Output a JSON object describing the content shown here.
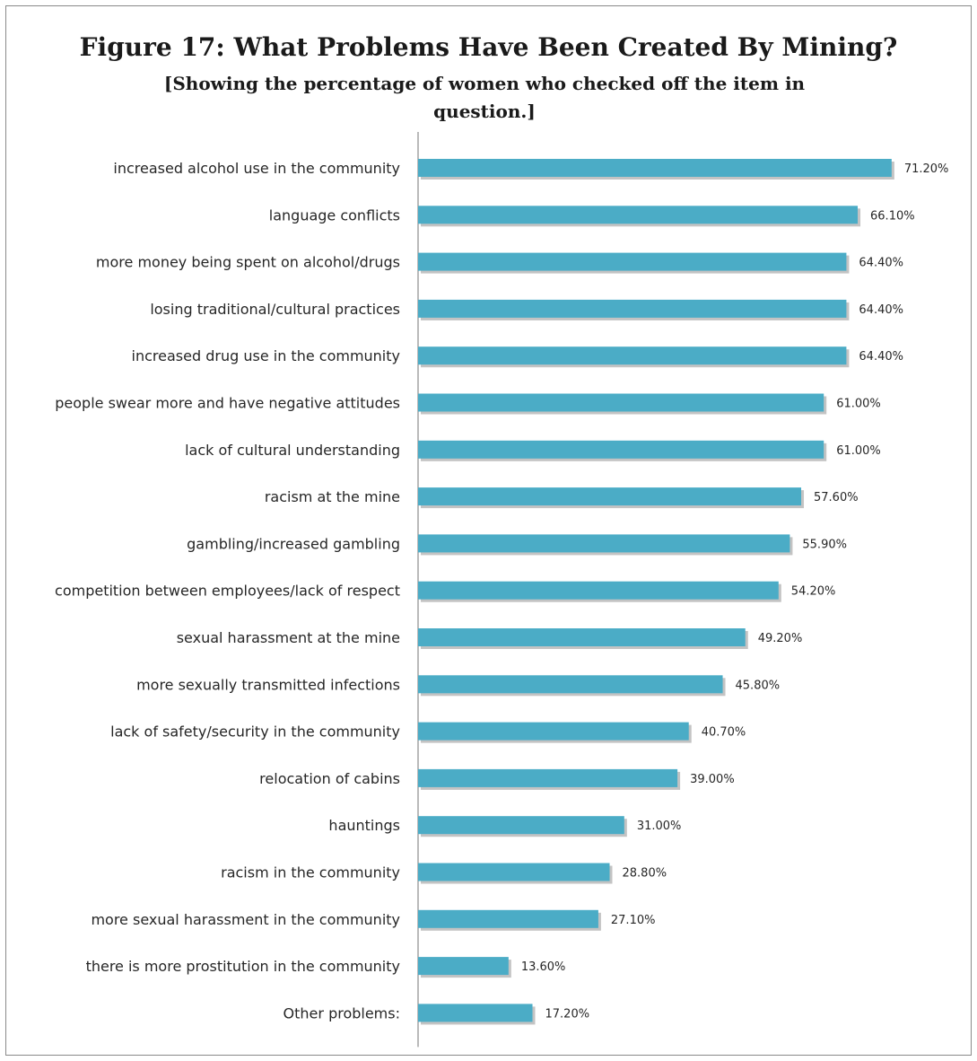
{
  "chart_data": {
    "type": "bar",
    "orientation": "horizontal",
    "title": "Figure 17: What Problems Have Been Created By Mining?",
    "subtitle": "[Showing the percentage of women who checked off the item in question.]",
    "categories": [
      "increased alcohol use in the community",
      "language conflicts",
      "more money being spent on alcohol/drugs",
      "losing traditional/cultural practices",
      "increased drug use in the community",
      "people swear more and have negative attitudes",
      "lack of cultural understanding",
      "racism at the mine",
      "gambling/increased gambling",
      "competition between employees/lack of respect",
      "sexual harassment at the mine",
      "more sexually transmitted infections",
      "lack of safety/security in the community",
      "relocation of cabins",
      "hauntings",
      "racism in the community",
      "more sexual harassment in the community",
      "there is more prostitution in the community",
      "Other problems:"
    ],
    "values": [
      71.2,
      66.1,
      64.4,
      64.4,
      64.4,
      61.0,
      61.0,
      57.6,
      55.9,
      54.2,
      49.2,
      45.8,
      40.7,
      39.0,
      31.0,
      28.8,
      27.1,
      13.6,
      17.2
    ],
    "value_labels": [
      "71.20%",
      "66.10%",
      "64.40%",
      "64.40%",
      "64.40%",
      "61.00%",
      "61.00%",
      "57.60%",
      "55.90%",
      "54.20%",
      "49.20%",
      "45.80%",
      "40.70%",
      "39.00%",
      "31.00%",
      "28.80%",
      "27.10%",
      "13.60%",
      "17.20%"
    ],
    "xlim": [
      0,
      75
    ],
    "grid": false,
    "legend": "none",
    "bar_color": "#4bacc6",
    "bar_shadow_color": "#c3c3c3"
  }
}
